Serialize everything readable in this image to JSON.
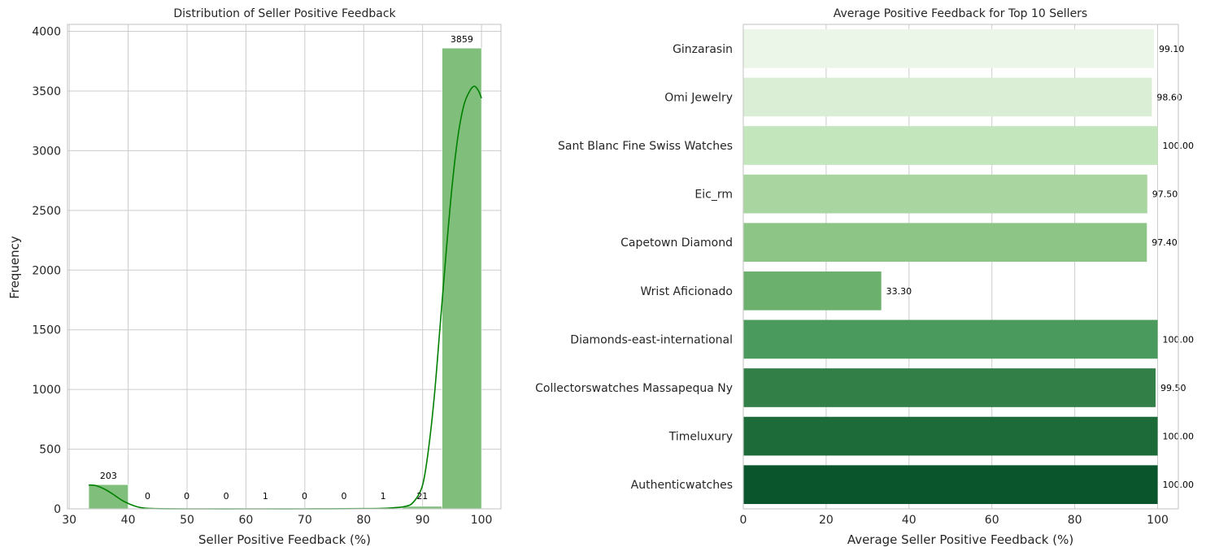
{
  "chart_data": [
    {
      "type": "bar",
      "subtype": "histogram",
      "title": "Distribution of Seller Positive Feedback",
      "xlabel": "Seller Positive Feedback (%)",
      "ylabel": "Frequency",
      "xlim": [
        30,
        100
      ],
      "ylim": [
        0,
        4000
      ],
      "xticks": [
        "30",
        "40",
        "50",
        "60",
        "70",
        "80",
        "90",
        "100"
      ],
      "yticks": [
        "0",
        "500",
        "1000",
        "1500",
        "2000",
        "2500",
        "3000",
        "3500",
        "4000"
      ],
      "bins": [
        {
          "start": 33.3,
          "end": 40.0,
          "count": 203,
          "label": "203"
        },
        {
          "start": 40.0,
          "end": 46.6,
          "count": 0,
          "label": "0"
        },
        {
          "start": 46.6,
          "end": 53.3,
          "count": 0,
          "label": "0"
        },
        {
          "start": 53.3,
          "end": 60.0,
          "count": 0,
          "label": "0"
        },
        {
          "start": 60.0,
          "end": 66.6,
          "count": 1,
          "label": "1"
        },
        {
          "start": 66.6,
          "end": 73.3,
          "count": 0,
          "label": "0"
        },
        {
          "start": 73.3,
          "end": 80.0,
          "count": 0,
          "label": "0"
        },
        {
          "start": 80.0,
          "end": 86.6,
          "count": 1,
          "label": "1"
        },
        {
          "start": 86.6,
          "end": 93.3,
          "count": 21,
          "label": "21"
        },
        {
          "start": 93.3,
          "end": 100.0,
          "count": 3859,
          "label": "3859"
        }
      ],
      "kde": [
        [
          33.3,
          200
        ],
        [
          34.5,
          195
        ],
        [
          36,
          165
        ],
        [
          37.5,
          120
        ],
        [
          39,
          70
        ],
        [
          40.5,
          35
        ],
        [
          42,
          12
        ],
        [
          44,
          3
        ],
        [
          50,
          0
        ],
        [
          60,
          0
        ],
        [
          70,
          0
        ],
        [
          80,
          2
        ],
        [
          84,
          6
        ],
        [
          87,
          20
        ],
        [
          88.5,
          60
        ],
        [
          90,
          200
        ],
        [
          91,
          500
        ],
        [
          92,
          950
        ],
        [
          93,
          1550
        ],
        [
          94,
          2150
        ],
        [
          95,
          2700
        ],
        [
          96,
          3120
        ],
        [
          97,
          3380
        ],
        [
          98,
          3500
        ],
        [
          98.8,
          3540
        ],
        [
          99.5,
          3500
        ],
        [
          100,
          3440
        ]
      ],
      "bar_color": "#7fbf7b",
      "kde_color": "#008000",
      "grid": true
    },
    {
      "type": "bar",
      "orientation": "horizontal",
      "title": "Average Positive Feedback for Top 10 Sellers",
      "xlabel": "Average Seller Positive Feedback (%)",
      "ylabel": "",
      "xlim": [
        0,
        100
      ],
      "xticks": [
        "0",
        "20",
        "40",
        "60",
        "80",
        "100"
      ],
      "categories": [
        "Ginzarasin",
        "Omi Jewelry",
        "Sant Blanc Fine Swiss Watches",
        "Eic_rm",
        "Capetown Diamond",
        "Wrist Aficionado",
        "Diamonds-east-international",
        "Collectorswatches Massapequa Ny",
        "Timeluxury",
        "Authenticwatches"
      ],
      "values": [
        99.1,
        98.6,
        100.0,
        97.5,
        97.4,
        33.3,
        100.0,
        99.5,
        100.0,
        100.0
      ],
      "value_labels": [
        "99.10",
        "98.60",
        "100.00",
        "97.50",
        "97.40",
        "33.30",
        "100.00",
        "99.50",
        "100.00",
        "100.00"
      ],
      "colors": [
        "#ebf6e8",
        "#d9eed4",
        "#c4e6bd",
        "#a9d6a0",
        "#8cc585",
        "#6bb06d",
        "#4a9a5d",
        "#328048",
        "#1c6b39",
        "#0b552c"
      ],
      "grid": true
    }
  ]
}
